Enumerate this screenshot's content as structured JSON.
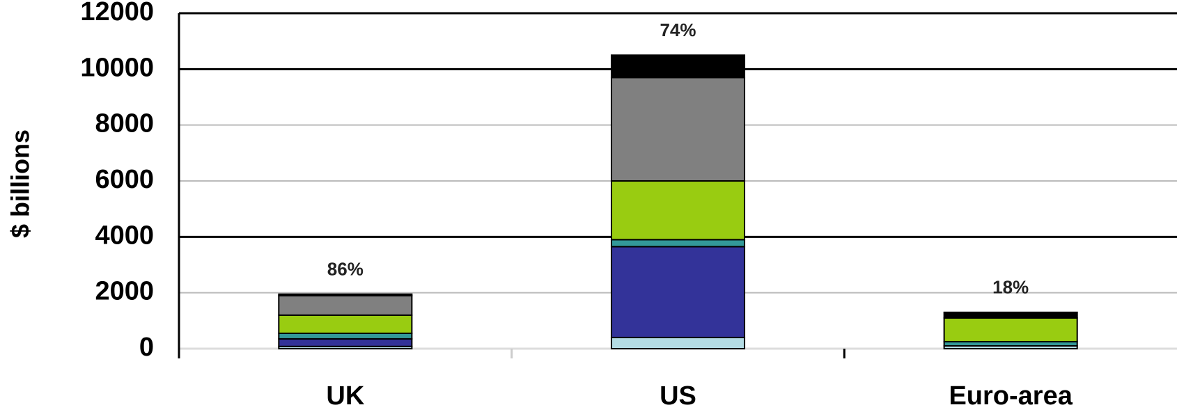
{
  "chart_data": {
    "type": "stacked_bar",
    "y_label": "$ billions",
    "categories": [
      "UK",
      "US",
      "Euro-area"
    ],
    "series": [
      {
        "color": "#b4dce4",
        "values": [
          80,
          400,
          100
        ]
      },
      {
        "color": "#333399",
        "values": [
          270,
          3250,
          0
        ]
      },
      {
        "color": "#339999",
        "values": [
          200,
          250,
          150
        ]
      },
      {
        "color": "#99cc11",
        "values": [
          650,
          2100,
          850
        ]
      },
      {
        "color": "#808080",
        "values": [
          700,
          3700,
          0
        ]
      },
      {
        "color": "#000000",
        "values": [
          50,
          800,
          200
        ]
      }
    ],
    "bar_labels": [
      "86%",
      "74%",
      "18%"
    ],
    "ylim": [
      0,
      12000
    ],
    "yticks": [
      0,
      2000,
      4000,
      6000,
      8000,
      10000,
      12000
    ],
    "grid": true
  }
}
